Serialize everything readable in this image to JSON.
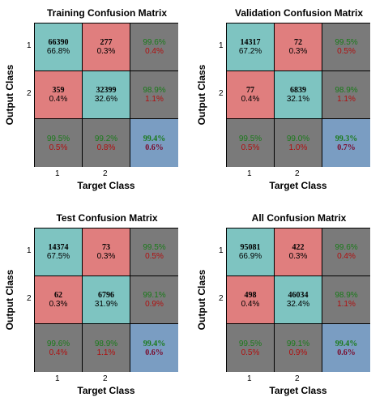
{
  "chart_data": [
    {
      "type": "table",
      "title": "Training Confusion Matrix",
      "xlabel": "Target Class",
      "ylabel": "Output Class",
      "x_ticks": [
        "1",
        "2"
      ],
      "y_ticks": [
        "1",
        "2"
      ],
      "cells": [
        [
          {
            "line1": "66390",
            "line2": "66.8%"
          },
          {
            "line1": "277",
            "line2": "0.3%"
          },
          {
            "line1": "99.6%",
            "line2": "0.4%"
          }
        ],
        [
          {
            "line1": "359",
            "line2": "0.4%"
          },
          {
            "line1": "32399",
            "line2": "32.6%"
          },
          {
            "line1": "98.9%",
            "line2": "1.1%"
          }
        ],
        [
          {
            "line1": "99.5%",
            "line2": "0.5%"
          },
          {
            "line1": "99.2%",
            "line2": "0.8%"
          },
          {
            "line1": "99.4%",
            "line2": "0.6%"
          }
        ]
      ]
    },
    {
      "type": "table",
      "title": "Validation Confusion Matrix",
      "xlabel": "Target Class",
      "ylabel": "Output Class",
      "x_ticks": [
        "1",
        "2"
      ],
      "y_ticks": [
        "1",
        "2"
      ],
      "cells": [
        [
          {
            "line1": "14317",
            "line2": "67.2%"
          },
          {
            "line1": "72",
            "line2": "0.3%"
          },
          {
            "line1": "99.5%",
            "line2": "0.5%"
          }
        ],
        [
          {
            "line1": "77",
            "line2": "0.4%"
          },
          {
            "line1": "6839",
            "line2": "32.1%"
          },
          {
            "line1": "98.9%",
            "line2": "1.1%"
          }
        ],
        [
          {
            "line1": "99.5%",
            "line2": "0.5%"
          },
          {
            "line1": "99.0%",
            "line2": "1.0%"
          },
          {
            "line1": "99.3%",
            "line2": "0.7%"
          }
        ]
      ]
    },
    {
      "type": "table",
      "title": "Test Confusion Matrix",
      "xlabel": "Target Class",
      "ylabel": "Output Class",
      "x_ticks": [
        "1",
        "2"
      ],
      "y_ticks": [
        "1",
        "2"
      ],
      "cells": [
        [
          {
            "line1": "14374",
            "line2": "67.5%"
          },
          {
            "line1": "73",
            "line2": "0.3%"
          },
          {
            "line1": "99.5%",
            "line2": "0.5%"
          }
        ],
        [
          {
            "line1": "62",
            "line2": "0.3%"
          },
          {
            "line1": "6796",
            "line2": "31.9%"
          },
          {
            "line1": "99.1%",
            "line2": "0.9%"
          }
        ],
        [
          {
            "line1": "99.6%",
            "line2": "0.4%"
          },
          {
            "line1": "98.9%",
            "line2": "1.1%"
          },
          {
            "line1": "99.4%",
            "line2": "0.6%"
          }
        ]
      ]
    },
    {
      "type": "table",
      "title": "All Confusion Matrix",
      "xlabel": "Target Class",
      "ylabel": "Output Class",
      "x_ticks": [
        "1",
        "2"
      ],
      "y_ticks": [
        "1",
        "2"
      ],
      "cells": [
        [
          {
            "line1": "95081",
            "line2": "66.9%"
          },
          {
            "line1": "422",
            "line2": "0.3%"
          },
          {
            "line1": "99.6%",
            "line2": "0.4%"
          }
        ],
        [
          {
            "line1": "498",
            "line2": "0.4%"
          },
          {
            "line1": "46034",
            "line2": "32.4%"
          },
          {
            "line1": "98.9%",
            "line2": "1.1%"
          }
        ],
        [
          {
            "line1": "99.5%",
            "line2": "0.5%"
          },
          {
            "line1": "99.1%",
            "line2": "0.9%"
          },
          {
            "line1": "99.4%",
            "line2": "0.6%"
          }
        ]
      ]
    }
  ],
  "colors": {
    "correct": "#7ec4c1",
    "incorrect": "#e07e7e",
    "summary": "#7a7a7a",
    "overall": "#7a9dc2",
    "accuracy_text": "#1a7a1a",
    "error_text": "#b01010",
    "overall_error_text": "#7a0a2a",
    "count_text": "#000000"
  }
}
